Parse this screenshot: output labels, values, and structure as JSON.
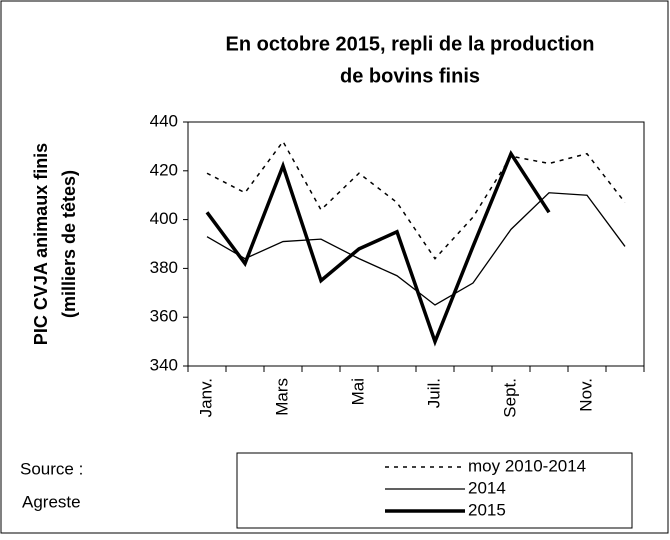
{
  "chart_data": {
    "type": "line",
    "title": [
      "En octobre 2015,  repli de la production",
      "de bovins finis"
    ],
    "y_label": [
      "PIC CVJA animaux finis",
      "(milliers de têtes)"
    ],
    "source": [
      "Source :",
      "Agreste"
    ],
    "categories": [
      "Janv.",
      null,
      "Mars",
      null,
      "Mai",
      null,
      "Juil.",
      null,
      "Sept.",
      null,
      "Nov.",
      null
    ],
    "series": [
      {
        "name": "moy 2010-2014",
        "color": "#000000",
        "style": "dotted",
        "width": 1.5,
        "values": [
          419,
          411,
          432,
          404,
          419,
          407,
          384,
          401,
          426,
          423,
          427,
          407
        ]
      },
      {
        "name": "2014",
        "color": "#000000",
        "style": "solid",
        "width": 1.3,
        "values": [
          393,
          384,
          391,
          392,
          384,
          377,
          365,
          374,
          396,
          411,
          410,
          389
        ]
      },
      {
        "name": "2015",
        "color": "#000000",
        "style": "solid",
        "width": 3.5,
        "values": [
          403,
          382,
          422,
          375,
          388,
          395,
          350,
          389,
          427,
          403,
          null,
          null
        ]
      }
    ],
    "ylim": [
      340,
      440
    ],
    "yticks": [
      340,
      360,
      380,
      400,
      420,
      440
    ],
    "grid": false
  }
}
